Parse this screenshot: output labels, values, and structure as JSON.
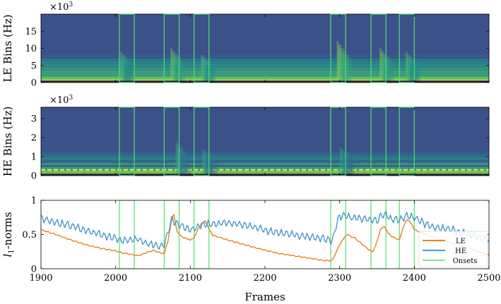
{
  "chart_data": [
    {
      "type": "heatmap",
      "ylabel": "LE Bins (Hz)",
      "multiplier": "×10",
      "multiplier_exp": "3",
      "yticks": [
        0,
        5,
        10,
        15
      ],
      "ylim": [
        0,
        20
      ],
      "energy_bands": [
        [
          0,
          1.2,
          1.0
        ],
        [
          1.2,
          3.0,
          0.62
        ],
        [
          3.0,
          7.0,
          0.35
        ],
        [
          7.0,
          20.0,
          0.06
        ]
      ],
      "bursts": [
        {
          "start": 2010,
          "peak": 2008,
          "top_khz": 9,
          "strength": 0.55
        },
        {
          "start": 2070,
          "peak": 2075,
          "top_khz": 10,
          "strength": 0.75
        },
        {
          "start": 2113,
          "peak": 2116,
          "top_khz": 8,
          "strength": 0.6
        },
        {
          "start": 2295,
          "peak": 2298,
          "top_khz": 12,
          "strength": 0.85
        },
        {
          "start": 2352,
          "peak": 2355,
          "top_khz": 10,
          "strength": 0.75
        },
        {
          "start": 2387,
          "peak": 2390,
          "top_khz": 9,
          "strength": 0.6
        }
      ]
    },
    {
      "type": "heatmap",
      "ylabel": "HE Bins (Hz)",
      "multiplier": "×10",
      "multiplier_exp": "3",
      "yticks": [
        0,
        1,
        2,
        3
      ],
      "ylim": [
        0,
        3.6
      ],
      "energy_bands": [
        [
          0,
          0.15,
          0.8
        ],
        [
          0.15,
          0.45,
          0.55
        ],
        [
          0.45,
          1.2,
          0.22
        ],
        [
          1.2,
          3.6,
          0.06
        ]
      ],
      "bright_line_khz": 0.3,
      "bursts": [
        {
          "start": 2080,
          "peak": 2082,
          "top_khz": 1.8,
          "strength": 0.4
        },
        {
          "start": 2115,
          "peak": 2118,
          "top_khz": 1.4,
          "strength": 0.35
        },
        {
          "start": 2300,
          "peak": 2302,
          "top_khz": 1.5,
          "strength": 0.35
        }
      ]
    },
    {
      "type": "line",
      "ylabel": "l1-norms",
      "ylabel_main": "l",
      "ylabel_sub": "1",
      "ylabel_rest": "-norms",
      "xlabel": "Frames",
      "xlim": [
        1900,
        2500
      ],
      "ylim": [
        0,
        1
      ],
      "xticks": [
        1900,
        2000,
        2100,
        2200,
        2300,
        2400,
        2500
      ],
      "yticks": [
        0,
        0.5,
        1
      ],
      "ytick_labels": [
        "0",
        "0.5",
        "1"
      ],
      "series": [
        {
          "name": "LE",
          "color": "#e8821e",
          "x": [
            1900,
            1920,
            1940,
            1960,
            1980,
            2000,
            2010,
            2020,
            2030,
            2040,
            2050,
            2060,
            2065,
            2070,
            2075,
            2078,
            2082,
            2088,
            2095,
            2100,
            2105,
            2110,
            2115,
            2120,
            2125,
            2130,
            2150,
            2180,
            2200,
            2220,
            2250,
            2280,
            2290,
            2296,
            2300,
            2305,
            2310,
            2320,
            2330,
            2340,
            2345,
            2350,
            2355,
            2360,
            2365,
            2370,
            2380,
            2385,
            2390,
            2395,
            2400,
            2420,
            2450,
            2480,
            2500
          ],
          "y": [
            0.57,
            0.5,
            0.42,
            0.35,
            0.3,
            0.26,
            0.23,
            0.21,
            0.19,
            0.23,
            0.27,
            0.23,
            0.22,
            0.4,
            0.72,
            0.8,
            0.55,
            0.47,
            0.44,
            0.42,
            0.45,
            0.57,
            0.66,
            0.7,
            0.58,
            0.49,
            0.42,
            0.33,
            0.27,
            0.22,
            0.17,
            0.12,
            0.12,
            0.26,
            0.35,
            0.44,
            0.5,
            0.45,
            0.36,
            0.27,
            0.25,
            0.4,
            0.58,
            0.62,
            0.52,
            0.47,
            0.42,
            0.6,
            0.72,
            0.68,
            0.57,
            0.48,
            0.38,
            0.27,
            0.2
          ]
        },
        {
          "name": "HE",
          "color": "#4a9ac4",
          "x": [
            1900,
            1920,
            1940,
            1960,
            1980,
            2000,
            2010,
            2020,
            2030,
            2040,
            2050,
            2060,
            2065,
            2070,
            2075,
            2080,
            2085,
            2090,
            2095,
            2100,
            2110,
            2120,
            2130,
            2150,
            2180,
            2200,
            2220,
            2250,
            2280,
            2290,
            2295,
            2300,
            2305,
            2310,
            2320,
            2340,
            2350,
            2355,
            2360,
            2370,
            2380,
            2390,
            2400,
            2420,
            2450,
            2480,
            2500
          ],
          "y": [
            0.74,
            0.68,
            0.63,
            0.56,
            0.5,
            0.44,
            0.4,
            0.42,
            0.44,
            0.38,
            0.35,
            0.33,
            0.35,
            0.52,
            0.72,
            0.68,
            0.64,
            0.61,
            0.59,
            0.57,
            0.62,
            0.65,
            0.66,
            0.67,
            0.63,
            0.56,
            0.52,
            0.48,
            0.44,
            0.4,
            0.62,
            0.76,
            0.78,
            0.76,
            0.74,
            0.72,
            0.7,
            0.76,
            0.8,
            0.72,
            0.71,
            0.78,
            0.75,
            0.62,
            0.57,
            0.48,
            0.42
          ]
        },
        {
          "name": "Onsets",
          "color": "#52e06a"
        }
      ]
    }
  ],
  "onset_windows": [
    [
      2005,
      2025
    ],
    [
      2065,
      2085
    ],
    [
      2105,
      2125
    ],
    [
      2288,
      2308
    ],
    [
      2342,
      2362
    ],
    [
      2380,
      2400
    ]
  ]
}
